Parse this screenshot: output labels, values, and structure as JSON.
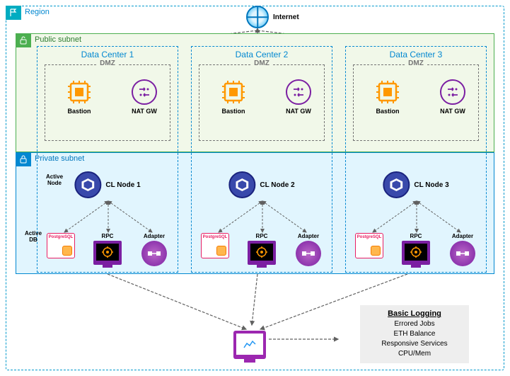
{
  "region": {
    "label": "Region",
    "border_color": "#0099cc",
    "badge_color": "#00acc1"
  },
  "internet": {
    "label": "Internet",
    "icon_border": "#0277bd"
  },
  "public_subnet": {
    "label": "Public subnet",
    "border_color": "#4caf50",
    "bg_color": "#f1f8e9",
    "badge_color": "#4caf50"
  },
  "private_subnet": {
    "label": "Private subnet",
    "border_color": "#0288d1",
    "bg_color": "#e1f5fe",
    "badge_color": "#0288d1"
  },
  "dmz": {
    "label": "DMZ",
    "border_color": "#757575"
  },
  "data_centers": [
    {
      "label": "Data Center 1",
      "bastion_label": "Bastion",
      "natgw_label": "NAT GW"
    },
    {
      "label": "Data Center 2",
      "bastion_label": "Bastion",
      "natgw_label": "NAT GW"
    },
    {
      "label": "Data Center 3",
      "bastion_label": "Bastion",
      "natgw_label": "NAT GW"
    }
  ],
  "active_node_label": "Active\nNode",
  "cl_nodes": [
    {
      "label": "CL Node 1"
    },
    {
      "label": "CL Node 2"
    },
    {
      "label": "CL Node 3"
    }
  ],
  "services": {
    "db_label": "PostgreSQL",
    "rpc_label": "RPC",
    "adapter_label": "Adapter"
  },
  "active_db_label": "Active\nDB",
  "logging": {
    "title": "Basic Logging",
    "items": [
      "Errored Jobs",
      "ETH Balance",
      "Responsive Services",
      "CPU/Mem"
    ]
  },
  "colors": {
    "bastion_icon": "#ff9800",
    "natgw_icon": "#7b1fa2",
    "cl_circle_border": "#1a237e",
    "cl_circle_fill": "#3949ab",
    "db_border": "#e91e63",
    "db_cyl": "#f57c00",
    "monitor_bg": "#7b1fa2",
    "adapter_grad1": "#ba68c8",
    "adapter_grad2": "#7b1fa2",
    "logging_monitor": "#9c27b0",
    "logging_box_bg": "#eeeeee",
    "arrow_color": "#616161"
  }
}
